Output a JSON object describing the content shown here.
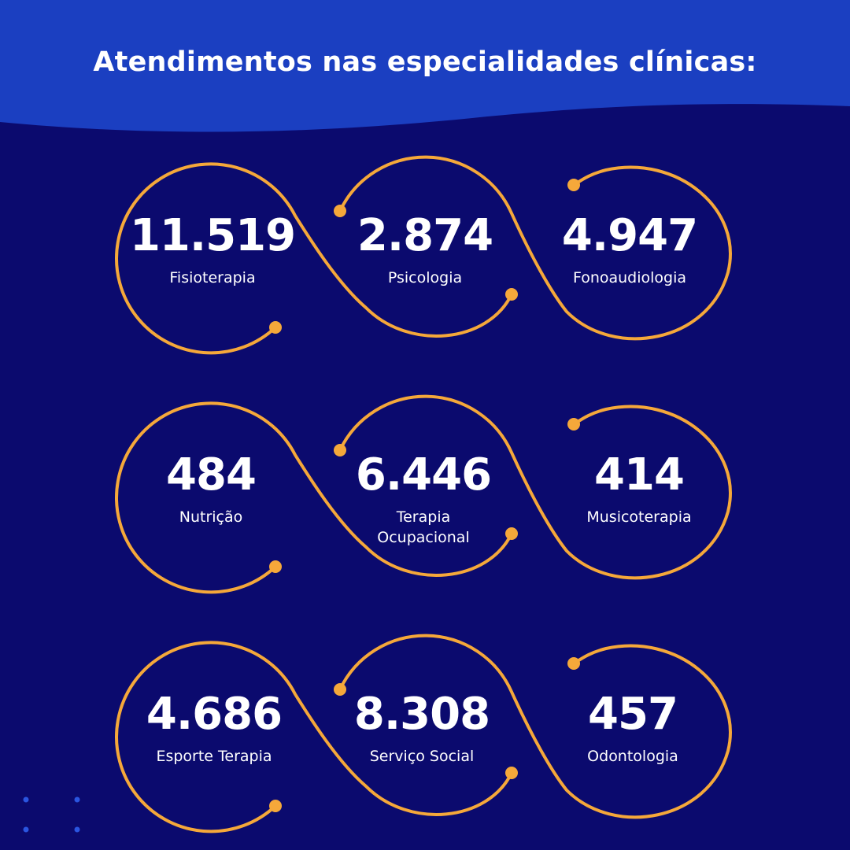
{
  "title": "Atendimentos nas especialidades clínicas:",
  "colors": {
    "background": "#0b0a6e",
    "header_wave": "#1b3fc1",
    "accent": "#f5a83a",
    "text": "#ffffff"
  },
  "rows": [
    {
      "items": [
        {
          "value": "11.519",
          "label": "Fisioterapia"
        },
        {
          "value": "2.874",
          "label": "Psicologia"
        },
        {
          "value": "4.947",
          "label": "Fonoaudiologia"
        }
      ]
    },
    {
      "items": [
        {
          "value": "484",
          "label": "Nutrição"
        },
        {
          "value": "6.446",
          "label": "Terapia Ocupacional"
        },
        {
          "value": "414",
          "label": "Musicoterapia"
        }
      ]
    },
    {
      "items": [
        {
          "value": "4.686",
          "label": "Esporte Terapia"
        },
        {
          "value": "8.308",
          "label": "Serviço Social"
        },
        {
          "value": "457",
          "label": "Odontologia"
        }
      ]
    }
  ]
}
